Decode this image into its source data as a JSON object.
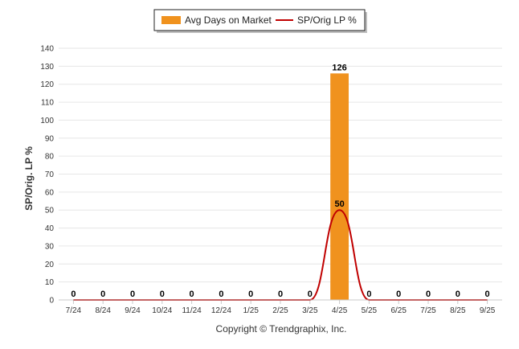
{
  "chart_data": {
    "type": "bar",
    "categories": [
      "7/24",
      "8/24",
      "9/24",
      "10/24",
      "11/24",
      "12/24",
      "1/25",
      "2/25",
      "3/25",
      "4/25",
      "5/25",
      "6/25",
      "7/25",
      "8/25",
      "9/25"
    ],
    "series": [
      {
        "name": "Avg Days on Market",
        "type": "bar",
        "values": [
          0,
          0,
          0,
          0,
          0,
          0,
          0,
          0,
          0,
          126,
          0,
          0,
          0,
          0,
          0
        ],
        "color": "#F0921E"
      },
      {
        "name": "SP/Orig LP %",
        "type": "line",
        "values": [
          0,
          0,
          0,
          0,
          0,
          0,
          0,
          0,
          0,
          50,
          0,
          0,
          0,
          0,
          0
        ],
        "color": "#C00000"
      }
    ],
    "ylabel": "SP/Orig. LP %",
    "ylim": [
      0,
      140
    ],
    "yticks": [
      0,
      10,
      20,
      30,
      40,
      50,
      60,
      70,
      80,
      90,
      100,
      110,
      120,
      130,
      140
    ],
    "grid": true,
    "legend": "top-center"
  },
  "footer": {
    "copyright": "Copyright © Trendgraphix, Inc."
  }
}
